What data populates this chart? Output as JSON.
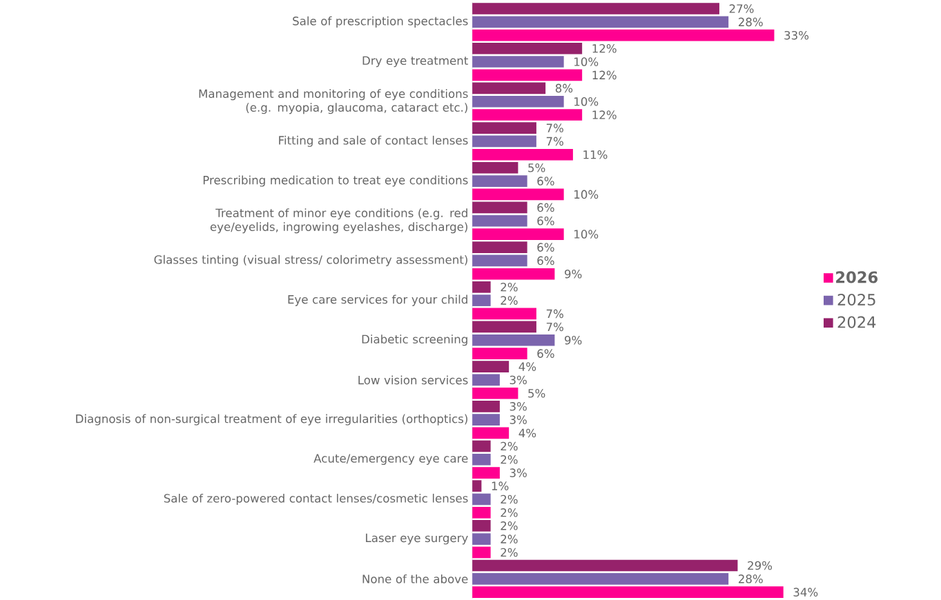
{
  "chart_data": {
    "type": "bar",
    "orientation": "horizontal",
    "categories": [
      "Sale of prescription spectacles",
      "Dry eye treatment",
      "Management and monitoring of eye conditions (e.g. myopia, glaucoma, cataract etc.)",
      "Fitting and sale of contact lenses",
      "Prescribing medication to treat eye conditions",
      "Treatment of minor eye conditions (e.g. red eye/eyelids, ingrowing eyelashes, discharge)",
      "Glasses tinting (visual stress/ colorimetry assessment)",
      "Eye care services for your child",
      "Diabetic screening",
      "Low vision services",
      "Diagnosis of non-surgical treatment of eye irregularities (orthoptics)",
      "Acute/emergency eye care",
      "Sale of zero-powered contact lenses/cosmetic lenses",
      "Laser eye surgery",
      "None of the above"
    ],
    "series": [
      {
        "name": "**2026**",
        "color": "#ff0090",
        "values": [
          33,
          12,
          12,
          11,
          10,
          10,
          9,
          7,
          6,
          5,
          4,
          3,
          2,
          2,
          34
        ],
        "value_labels": [
          "33%",
          "12%",
          "12%",
          "11%",
          "10%",
          "10%",
          "9%",
          "7%",
          "6%",
          "5%",
          "4%",
          "3%",
          "2%",
          "2%",
          "34%"
        ]
      },
      {
        "name": "2025",
        "color": "#7b64ad",
        "values": [
          28,
          10,
          10,
          7,
          6,
          6,
          6,
          2,
          9,
          3,
          3,
          2,
          2,
          2,
          28
        ],
        "value_labels": [
          "28%",
          "10%",
          "10%",
          "7%",
          "6%",
          "6%",
          "6%",
          "2%",
          "9%",
          "3%",
          "3%",
          "2%",
          "2%",
          "2%",
          "28%"
        ]
      },
      {
        "name": "2024",
        "color": "#96226b",
        "values": [
          27,
          12,
          8,
          7,
          5,
          6,
          6,
          2,
          7,
          4,
          3,
          2,
          1,
          2,
          29
        ],
        "value_labels": [
          "27%",
          "12%",
          "8%",
          "7%",
          "5%",
          "6%",
          "6%",
          "2%",
          "7%",
          "4%",
          "3%",
          "2%",
          "1%",
          "2%",
          "29%"
        ]
      }
    ],
    "legend": "right"
  }
}
